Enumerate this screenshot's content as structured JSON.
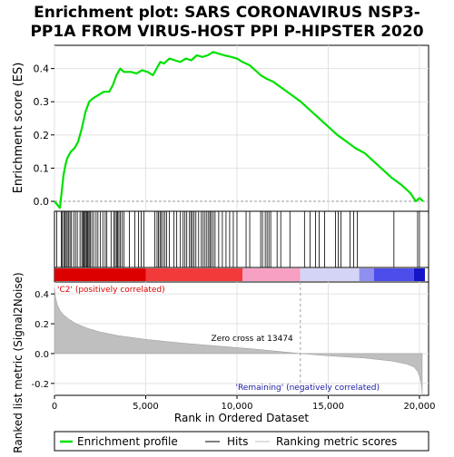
{
  "chart_data": {
    "type": "line",
    "title_line1": "Enrichment plot: SARS CORONAVIRUS NSP3-",
    "title_line2": "PP1A FROM VIRUS-HOST PPI P-HIPSTER 2020",
    "es_ylabel": "Enrichment score (ES)",
    "metric_ylabel_line1": "Ranked list metric (Signal2Noise)",
    "xlabel": "Rank in Ordered Dataset",
    "xlim": [
      0,
      20500
    ],
    "es_ylim": [
      -0.03,
      0.47
    ],
    "metric_ylim": [
      -0.28,
      0.48
    ],
    "x_ticks": [
      {
        "value": 0,
        "label": "0"
      },
      {
        "value": 5000,
        "label": "5,000"
      },
      {
        "value": 10000,
        "label": "10,000"
      },
      {
        "value": 15000,
        "label": "15,000"
      },
      {
        "value": 20000,
        "label": "20,000"
      }
    ],
    "es_ticks": [
      {
        "value": 0.0,
        "label": "0.0"
      },
      {
        "value": 0.1,
        "label": "0.1"
      },
      {
        "value": 0.2,
        "label": "0.2"
      },
      {
        "value": 0.3,
        "label": "0.3"
      },
      {
        "value": 0.4,
        "label": "0.4"
      }
    ],
    "metric_ticks": [
      {
        "value": -0.2,
        "label": "-0.2"
      },
      {
        "value": 0.0,
        "label": "0.0"
      },
      {
        "value": 0.2,
        "label": "0.2"
      },
      {
        "value": 0.4,
        "label": "0.4"
      }
    ],
    "enrichment_profile": {
      "name": "Enrichment profile",
      "color": "#00e000",
      "x": [
        0,
        300,
        400,
        500,
        600,
        700,
        900,
        1100,
        1300,
        1500,
        1700,
        1900,
        2100,
        2400,
        2700,
        3000,
        3200,
        3400,
        3600,
        3800,
        4200,
        4500,
        4800,
        5100,
        5400,
        5600,
        5800,
        6000,
        6300,
        6600,
        6900,
        7200,
        7500,
        7800,
        8100,
        8400,
        8700,
        9000,
        9300,
        9700,
        10000,
        10300,
        10700,
        11000,
        11300,
        11600,
        12000,
        12500,
        13000,
        13500,
        14000,
        14500,
        15000,
        15500,
        16000,
        16500,
        17000,
        17500,
        18000,
        18500,
        19000,
        19500,
        19800,
        20000,
        20200
      ],
      "y": [
        0.0,
        -0.02,
        0.03,
        0.08,
        0.11,
        0.13,
        0.15,
        0.16,
        0.18,
        0.22,
        0.27,
        0.3,
        0.31,
        0.32,
        0.33,
        0.33,
        0.35,
        0.38,
        0.4,
        0.39,
        0.39,
        0.385,
        0.395,
        0.39,
        0.38,
        0.4,
        0.42,
        0.415,
        0.43,
        0.425,
        0.42,
        0.43,
        0.425,
        0.44,
        0.435,
        0.44,
        0.45,
        0.445,
        0.44,
        0.435,
        0.43,
        0.42,
        0.41,
        0.395,
        0.38,
        0.37,
        0.36,
        0.34,
        0.32,
        0.3,
        0.275,
        0.25,
        0.225,
        0.2,
        0.18,
        0.16,
        0.145,
        0.12,
        0.095,
        0.07,
        0.05,
        0.025,
        0.0,
        0.01,
        0.0
      ]
    },
    "hits_legend": "Hits",
    "hits": [
      120,
      380,
      430,
      510,
      560,
      640,
      700,
      780,
      850,
      930,
      1050,
      1150,
      1250,
      1400,
      1500,
      1560,
      1620,
      1680,
      1740,
      1790,
      1840,
      1900,
      1960,
      2050,
      2150,
      2280,
      2380,
      2520,
      2650,
      2780,
      2870,
      3100,
      3250,
      3330,
      3400,
      3460,
      3530,
      3610,
      3700,
      3800,
      4100,
      4400,
      4600,
      4750,
      4900,
      5500,
      5620,
      5700,
      5780,
      5850,
      5950,
      6050,
      6150,
      6300,
      6550,
      6700,
      6900,
      7050,
      7150,
      7250,
      7400,
      7480,
      7560,
      7650,
      7750,
      7900,
      8050,
      8150,
      8250,
      8350,
      8450,
      8520,
      8600,
      8700,
      8800,
      9000,
      9200,
      9400,
      9600,
      9800,
      10000,
      10500,
      10700,
      11300,
      11400,
      11550,
      11650,
      11750,
      11850,
      12200,
      12400,
      12900,
      13700,
      14000,
      14300,
      14500,
      14800,
      15400,
      15550,
      15700,
      16200,
      16400,
      16600,
      18600,
      19900,
      20000
    ],
    "metric_series_name": "Ranking metric scores",
    "ranked_metric": {
      "x": [
        0,
        50,
        150,
        300,
        500,
        800,
        1200,
        1800,
        2500,
        3500,
        5000,
        7000,
        9000,
        11000,
        13474,
        15000,
        17000,
        18500,
        19300,
        19700,
        19900,
        20000,
        20100,
        20150
      ],
      "y": [
        0.44,
        0.38,
        0.33,
        0.29,
        0.26,
        0.23,
        0.2,
        0.17,
        0.145,
        0.12,
        0.095,
        0.07,
        0.05,
        0.03,
        0.0,
        -0.015,
        -0.03,
        -0.05,
        -0.07,
        -0.09,
        -0.12,
        -0.15,
        -0.2,
        -0.27
      ]
    },
    "zero_cross_label": "Zero cross at 13474",
    "zero_cross": 13474,
    "positive_label": "'C2' (positively correlated)",
    "negative_label": "'Remaining' (negatively correlated)",
    "heatmap_colors": [
      "#dd0000",
      "#f23a3a",
      "#f7a0c4",
      "#d4d4f7",
      "#8f8fef",
      "#4d4dec",
      "#1414c8"
    ],
    "heatmap_breaks": [
      0,
      5000,
      10300,
      13474,
      16700,
      17500,
      19700,
      20300
    ],
    "legend_position": "bottom"
  }
}
